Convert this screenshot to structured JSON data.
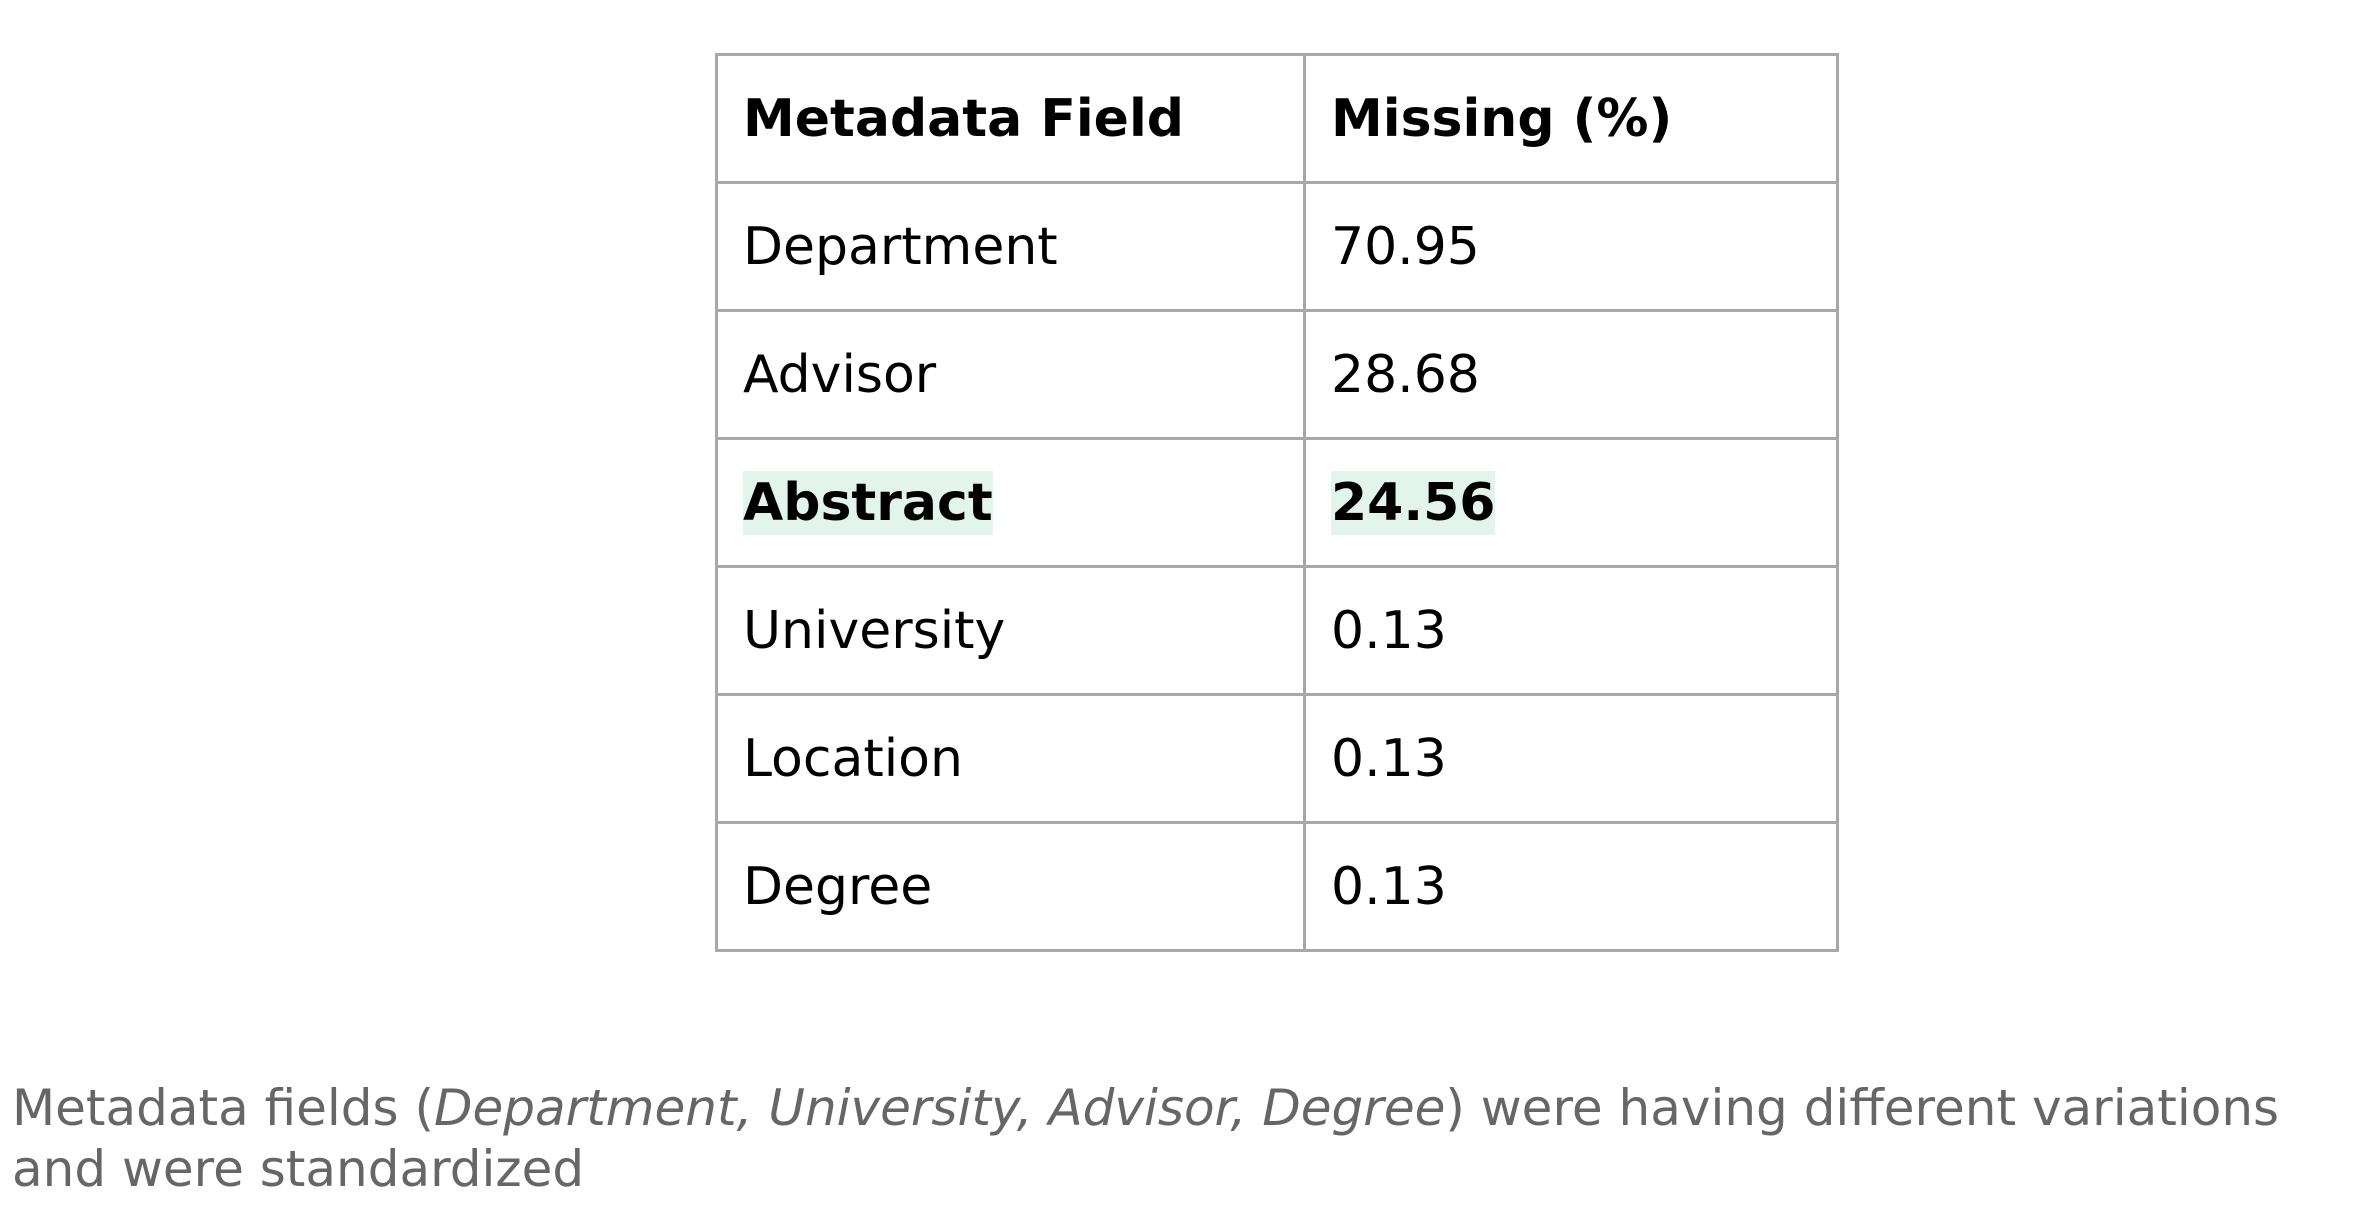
{
  "table": {
    "headers": [
      "Metadata Field",
      "Missing (%)"
    ],
    "rows": [
      {
        "field": "Department",
        "missing": "70.95",
        "highlighted": false
      },
      {
        "field": "Advisor",
        "missing": "28.68",
        "highlighted": false
      },
      {
        "field": "Abstract",
        "missing": "24.56",
        "highlighted": true
      },
      {
        "field": "University",
        "missing": "0.13",
        "highlighted": false
      },
      {
        "field": "Location",
        "missing": "0.13",
        "highlighted": false
      },
      {
        "field": "Degree",
        "missing": "0.13",
        "highlighted": false
      }
    ],
    "highlight_color": "#e2f4ec",
    "border_color": "#a8a8a8"
  },
  "caption": {
    "prefix": "Metadata fields (",
    "italic_list": "Department, University, Advisor, Degree",
    "suffix": ") were having different variations and were standardized",
    "color": "#666666"
  }
}
